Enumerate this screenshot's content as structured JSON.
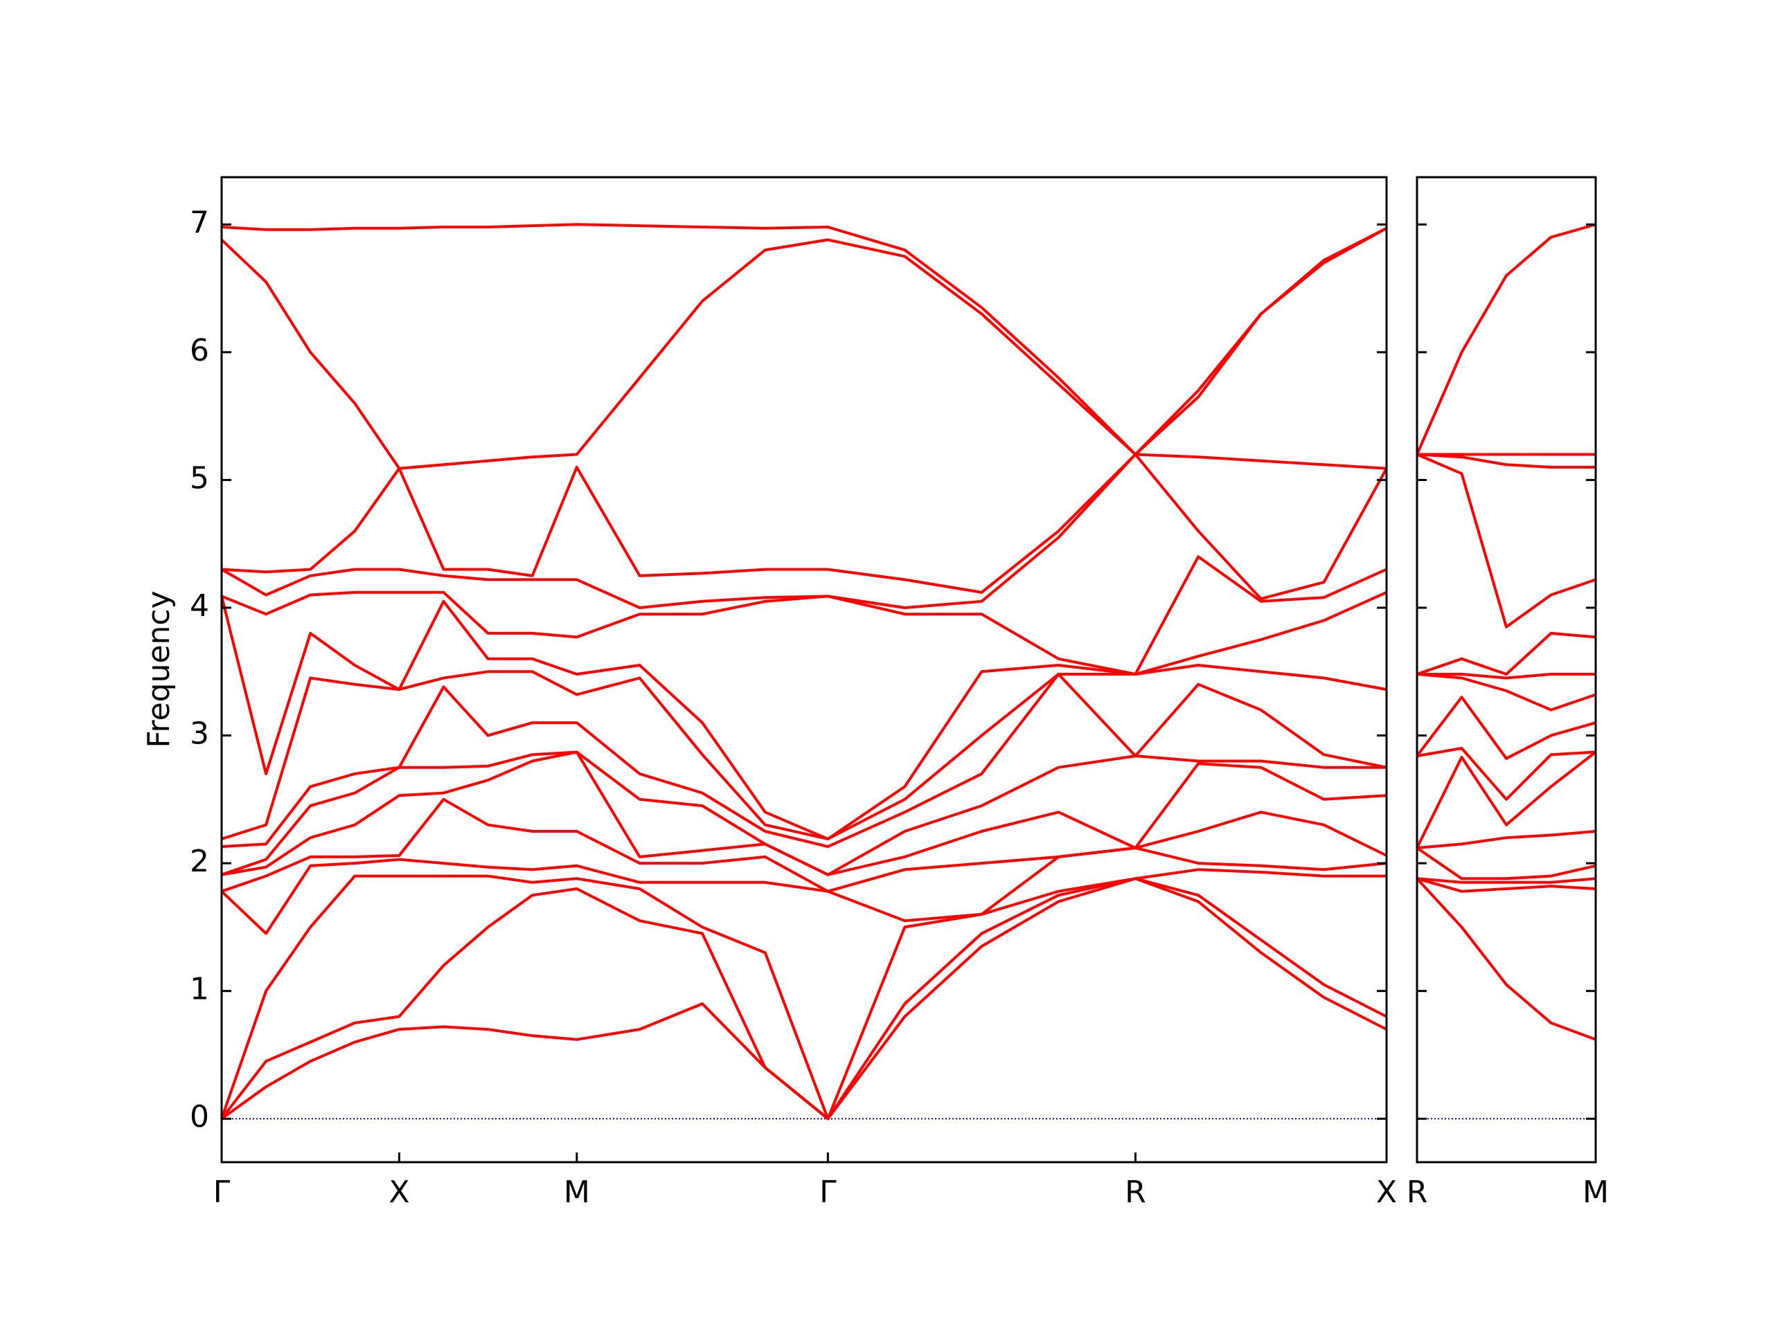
{
  "chart_data": [
    {
      "type": "line",
      "ylabel": "Frequency",
      "x": [
        0,
        0.25,
        0.5,
        0.75,
        1,
        1.25,
        1.5,
        1.75,
        2,
        2.354,
        2.707,
        3.061,
        3.414,
        3.847,
        4.28,
        4.713,
        5.146,
        5.5,
        5.853,
        6.207,
        6.56
      ],
      "xlim": [
        0,
        6.56
      ],
      "xticks": [
        {
          "value": 0,
          "label": "Γ"
        },
        {
          "value": 1,
          "label": "X"
        },
        {
          "value": 2,
          "label": "M"
        },
        {
          "value": 3.414,
          "label": "Γ"
        },
        {
          "value": 5.146,
          "label": "R"
        },
        {
          "value": 6.56,
          "label": "X"
        }
      ],
      "ylim": [
        -0.34,
        7.37
      ],
      "yticks": [
        0,
        1,
        2,
        3,
        4,
        5,
        6,
        7
      ],
      "zero_line": {
        "value": 0,
        "color": "#0000cc"
      },
      "series": [
        {
          "color": "#ff0000",
          "values": [
            0,
            0.25,
            0.45,
            0.6,
            0.7,
            0.72,
            0.7,
            0.65,
            0.62,
            0.7,
            0.9,
            0.4,
            0,
            0.8,
            1.35,
            1.7,
            1.88,
            1.7,
            1.3,
            0.95,
            0.7
          ]
        },
        {
          "color": "#ff0000",
          "values": [
            0,
            0.45,
            0.6,
            0.75,
            0.8,
            1.2,
            1.5,
            1.75,
            1.8,
            1.55,
            1.45,
            0.4,
            0,
            0.9,
            1.45,
            1.75,
            1.88,
            1.75,
            1.4,
            1.05,
            0.8
          ]
        },
        {
          "color": "#ff0000",
          "values": [
            0,
            1.0,
            1.5,
            1.9,
            1.9,
            1.9,
            1.9,
            1.85,
            1.88,
            1.8,
            1.5,
            1.3,
            0,
            1.5,
            1.6,
            1.78,
            1.88,
            1.95,
            1.93,
            1.9,
            1.9
          ]
        },
        {
          "color": "#ff0000",
          "values": [
            1.78,
            1.45,
            1.98,
            2.0,
            2.03,
            2.0,
            1.97,
            1.95,
            1.98,
            1.85,
            1.85,
            1.85,
            1.78,
            1.55,
            1.6,
            2.05,
            2.12,
            2.0,
            1.98,
            1.95,
            2.0
          ]
        },
        {
          "color": "#ff0000",
          "values": [
            1.78,
            1.9,
            2.05,
            2.05,
            2.06,
            2.5,
            2.3,
            2.25,
            2.25,
            2.0,
            2.0,
            2.05,
            1.78,
            1.95,
            2.0,
            2.05,
            2.12,
            2.25,
            2.4,
            2.3,
            2.06
          ]
        },
        {
          "color": "#ff0000",
          "values": [
            1.91,
            1.97,
            2.2,
            2.3,
            2.53,
            2.55,
            2.65,
            2.8,
            2.87,
            2.05,
            2.1,
            2.15,
            1.91,
            2.05,
            2.25,
            2.4,
            2.12,
            2.78,
            2.75,
            2.5,
            2.53
          ]
        },
        {
          "color": "#ff0000",
          "values": [
            1.91,
            2.03,
            2.45,
            2.55,
            2.75,
            2.75,
            2.76,
            2.85,
            2.87,
            2.5,
            2.45,
            2.15,
            1.91,
            2.25,
            2.45,
            2.75,
            2.84,
            2.8,
            2.8,
            2.75,
            2.75
          ]
        },
        {
          "color": "#ff0000",
          "values": [
            2.13,
            2.15,
            2.6,
            2.7,
            2.75,
            3.38,
            3.0,
            3.1,
            3.1,
            2.7,
            2.55,
            2.25,
            2.13,
            2.4,
            2.7,
            3.48,
            2.84,
            3.4,
            3.2,
            2.85,
            2.75
          ]
        },
        {
          "color": "#ff0000",
          "values": [
            2.19,
            2.3,
            3.45,
            3.4,
            3.36,
            3.45,
            3.5,
            3.5,
            3.32,
            3.45,
            2.85,
            2.3,
            2.19,
            2.5,
            3.0,
            3.48,
            3.48,
            3.55,
            3.5,
            3.45,
            3.36
          ]
        },
        {
          "color": "#ff0000",
          "values": [
            4.09,
            2.7,
            3.8,
            3.55,
            3.36,
            4.05,
            3.6,
            3.6,
            3.48,
            3.55,
            3.1,
            2.4,
            2.19,
            2.6,
            3.5,
            3.55,
            3.48,
            3.62,
            3.75,
            3.9,
            4.12
          ]
        },
        {
          "color": "#ff0000",
          "values": [
            4.09,
            3.95,
            4.1,
            4.12,
            4.12,
            4.12,
            3.8,
            3.8,
            3.77,
            3.95,
            3.95,
            4.05,
            4.09,
            3.95,
            3.95,
            3.6,
            3.48,
            4.4,
            4.05,
            4.08,
            4.3
          ]
        },
        {
          "color": "#ff0000",
          "values": [
            4.3,
            4.1,
            4.25,
            4.3,
            4.3,
            4.25,
            4.22,
            4.22,
            4.22,
            4.0,
            4.05,
            4.08,
            4.09,
            4.0,
            4.05,
            4.55,
            5.2,
            4.6,
            4.07,
            4.2,
            5.09
          ]
        },
        {
          "color": "#ff0000",
          "values": [
            4.3,
            4.28,
            4.3,
            4.6,
            5.09,
            4.3,
            4.3,
            4.25,
            5.1,
            4.25,
            4.27,
            4.3,
            4.3,
            4.22,
            4.12,
            4.6,
            5.2,
            5.18,
            5.15,
            5.12,
            5.09
          ]
        },
        {
          "color": "#ff0000",
          "values": [
            6.88,
            6.55,
            6.0,
            5.6,
            5.09,
            5.12,
            5.15,
            5.18,
            5.2,
            5.8,
            6.4,
            6.8,
            6.88,
            6.75,
            6.3,
            5.75,
            5.2,
            5.65,
            6.3,
            6.7,
            6.97
          ]
        },
        {
          "color": "#ff0000",
          "values": [
            6.98,
            6.96,
            6.96,
            6.97,
            6.97,
            6.98,
            6.98,
            6.99,
            7.0,
            6.99,
            6.98,
            6.97,
            6.98,
            6.8,
            6.35,
            5.8,
            5.2,
            5.7,
            6.3,
            6.72,
            6.97
          ]
        }
      ]
    },
    {
      "type": "line",
      "x": [
        0,
        0.25,
        0.5,
        0.75,
        1
      ],
      "xlim": [
        0,
        1
      ],
      "xticks": [
        {
          "value": 0,
          "label": "R"
        },
        {
          "value": 1,
          "label": "M"
        }
      ],
      "ylim": [
        -0.34,
        7.37
      ],
      "yticks": [
        0,
        1,
        2,
        3,
        4,
        5,
        6,
        7
      ],
      "zero_line": {
        "value": 0,
        "color": "#0000cc"
      },
      "series": [
        {
          "color": "#ff0000",
          "values": [
            1.88,
            1.5,
            1.05,
            0.75,
            0.62
          ]
        },
        {
          "color": "#ff0000",
          "values": [
            1.88,
            1.78,
            1.8,
            1.82,
            1.8
          ]
        },
        {
          "color": "#ff0000",
          "values": [
            1.88,
            1.85,
            1.85,
            1.85,
            1.88
          ]
        },
        {
          "color": "#ff0000",
          "values": [
            2.12,
            1.88,
            1.88,
            1.9,
            1.98
          ]
        },
        {
          "color": "#ff0000",
          "values": [
            2.12,
            2.15,
            2.2,
            2.22,
            2.25
          ]
        },
        {
          "color": "#ff0000",
          "values": [
            2.12,
            2.83,
            2.3,
            2.6,
            2.87
          ]
        },
        {
          "color": "#ff0000",
          "values": [
            2.84,
            2.9,
            2.5,
            2.85,
            2.87
          ]
        },
        {
          "color": "#ff0000",
          "values": [
            2.84,
            3.3,
            2.82,
            3.0,
            3.1
          ]
        },
        {
          "color": "#ff0000",
          "values": [
            3.48,
            3.45,
            3.35,
            3.2,
            3.32
          ]
        },
        {
          "color": "#ff0000",
          "values": [
            3.48,
            3.48,
            3.45,
            3.48,
            3.48
          ]
        },
        {
          "color": "#ff0000",
          "values": [
            3.48,
            3.6,
            3.48,
            3.8,
            3.77
          ]
        },
        {
          "color": "#ff0000",
          "values": [
            5.2,
            5.05,
            3.85,
            4.1,
            4.22
          ]
        },
        {
          "color": "#ff0000",
          "values": [
            5.2,
            5.18,
            5.12,
            5.1,
            5.1
          ]
        },
        {
          "color": "#ff0000",
          "values": [
            5.2,
            5.2,
            5.2,
            5.2,
            5.2
          ]
        },
        {
          "color": "#ff0000",
          "values": [
            5.2,
            6.0,
            6.6,
            6.9,
            7.0
          ]
        }
      ]
    }
  ]
}
